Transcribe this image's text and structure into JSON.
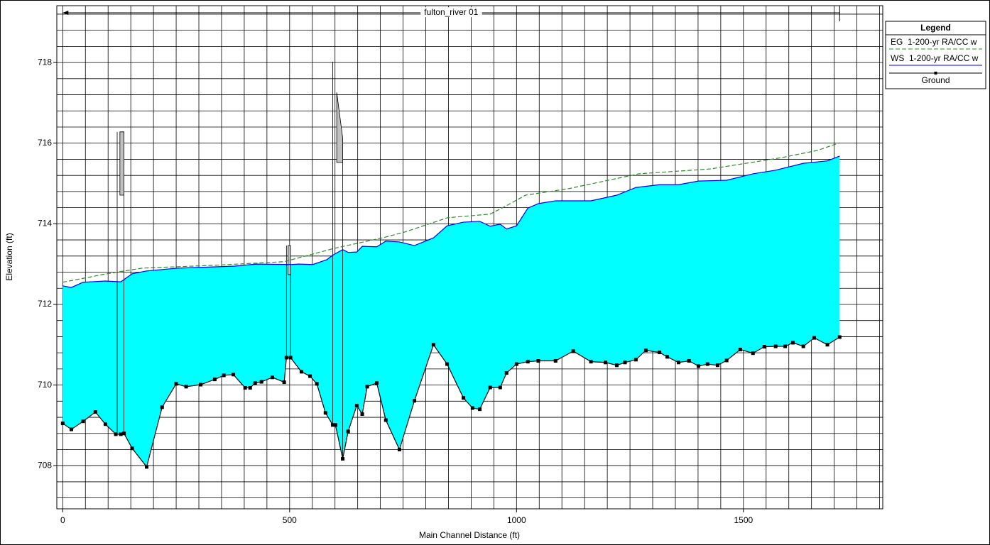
{
  "chart_data": {
    "type": "profile",
    "title": "fulton_river 01",
    "x_label": "Main Channel Distance (ft)",
    "y_label": "Elevation (ft)",
    "legend_title": "Legend",
    "legend": "top-right",
    "grid": true,
    "xlim": [
      -13,
      1807
    ],
    "ylim": [
      706.93,
      719.41
    ],
    "xticks": [
      0,
      500,
      1000,
      1500
    ],
    "yticks": [
      708,
      710,
      712,
      714,
      716,
      718
    ],
    "fill_color": "#00ffff",
    "series": [
      {
        "name": "EG  1-200-yr RA/CC w",
        "color": "#2e8b2e",
        "style": "dashed",
        "x": [
          0,
          97,
          175,
          332,
          488,
          598,
          708,
          755,
          848,
          942,
          978,
          1020,
          1114,
          1270,
          1427,
          1584,
          1663,
          1712
        ],
        "values": [
          712.55,
          712.76,
          712.9,
          712.97,
          713.06,
          713.39,
          713.66,
          713.8,
          714.15,
          714.24,
          714.45,
          714.71,
          714.87,
          715.24,
          715.36,
          715.64,
          715.82,
          716.01
        ]
      },
      {
        "name": "WS  1-200-yr RA/CC w",
        "color": "#0000ff",
        "style": "solid",
        "x": [
          0,
          19,
          45,
          94,
          128,
          153,
          185,
          254,
          332,
          379,
          426,
          504,
          520,
          551,
          582,
          595,
          617,
          629,
          648,
          660,
          692,
          712,
          742,
          775,
          817,
          847,
          883,
          919,
          942,
          964,
          978,
          1000,
          1025,
          1048,
          1086,
          1164,
          1221,
          1263,
          1315,
          1357,
          1401,
          1463,
          1521,
          1571,
          1632,
          1685,
          1712
        ],
        "values": [
          712.46,
          712.42,
          712.55,
          712.58,
          712.56,
          712.76,
          712.83,
          712.9,
          712.93,
          712.95,
          713.0,
          712.99,
          713.0,
          712.99,
          713.11,
          713.22,
          713.36,
          713.29,
          713.3,
          713.44,
          713.43,
          713.57,
          713.55,
          713.46,
          713.65,
          713.95,
          714.04,
          714.06,
          713.94,
          713.99,
          713.87,
          713.95,
          714.39,
          714.5,
          714.57,
          714.57,
          714.71,
          714.9,
          714.97,
          714.97,
          715.06,
          715.08,
          715.24,
          715.33,
          715.5,
          715.56,
          715.68
        ]
      },
      {
        "name": "Ground",
        "color": "#000000",
        "style": "markers",
        "x": [
          0,
          19,
          45,
          72,
          94,
          117,
          128,
          135,
          153,
          185,
          219,
          250,
          272,
          304,
          335,
          355,
          376,
          402,
          413,
          424,
          438,
          462,
          488,
          493,
          502,
          526,
          545,
          560,
          579,
          595,
          601,
          617,
          629,
          648,
          660,
          671,
          692,
          712,
          742,
          775,
          817,
          847,
          883,
          903,
          919,
          942,
          964,
          978,
          1000,
          1025,
          1048,
          1086,
          1125,
          1164,
          1196,
          1221,
          1239,
          1263,
          1285,
          1315,
          1332,
          1357,
          1380,
          1401,
          1421,
          1443,
          1463,
          1493,
          1521,
          1546,
          1571,
          1592,
          1609,
          1632,
          1656,
          1685,
          1712
        ],
        "values": [
          709.05,
          708.9,
          709.1,
          709.33,
          709.03,
          708.78,
          708.78,
          708.8,
          708.43,
          707.97,
          709.45,
          710.03,
          709.96,
          710.01,
          710.14,
          710.24,
          710.26,
          709.93,
          709.93,
          710.05,
          710.08,
          710.19,
          710.07,
          710.68,
          710.68,
          710.33,
          710.22,
          710.03,
          709.31,
          709.01,
          709.01,
          708.17,
          708.85,
          709.49,
          709.28,
          709.96,
          710.05,
          709.13,
          708.4,
          709.61,
          711.0,
          710.52,
          709.68,
          709.43,
          709.4,
          709.94,
          709.94,
          710.3,
          710.52,
          710.58,
          710.6,
          710.6,
          710.84,
          710.58,
          710.56,
          710.49,
          710.56,
          710.63,
          710.86,
          710.81,
          710.7,
          710.56,
          710.6,
          710.47,
          710.52,
          710.49,
          710.61,
          710.88,
          710.79,
          710.95,
          710.96,
          710.96,
          711.05,
          710.96,
          711.17,
          711.0,
          711.19
        ]
      }
    ],
    "structures": [
      {
        "x": [
          120,
          135
        ],
        "top": [
          716.28,
          716.28
        ],
        "bottom": 714.71
      },
      {
        "x": [
          493,
          502
        ],
        "top": [
          713.46,
          713.46
        ],
        "bottom": 712.74
      },
      {
        "x": [
          595,
          617
        ],
        "top": [
          718.02,
          716.12
        ],
        "bottom": 715.52
      }
    ]
  }
}
